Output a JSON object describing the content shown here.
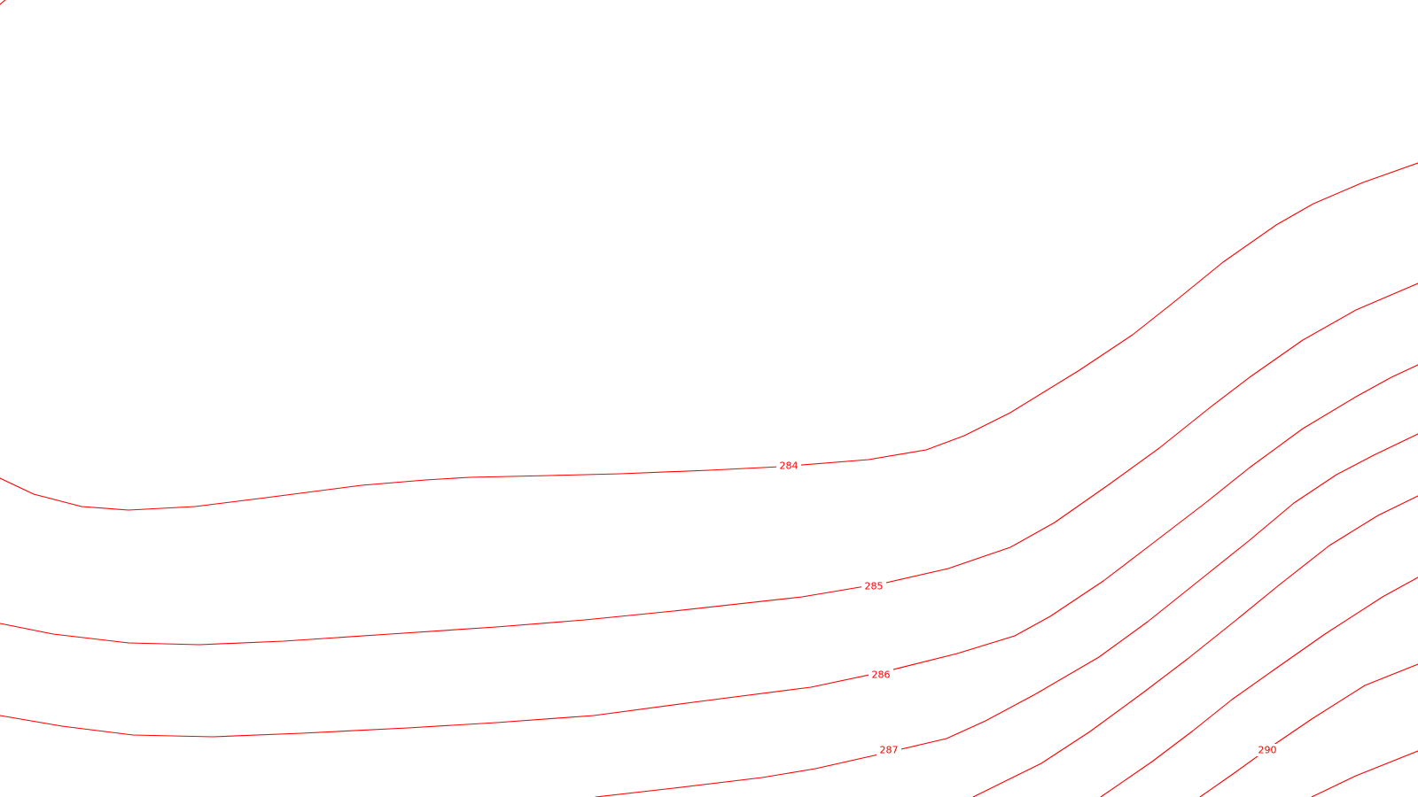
{
  "map": {
    "type": "contour-map",
    "line_color": "#ff0000",
    "background_color": "#ffffff",
    "contours": [
      {
        "elevation": "283",
        "labeled": false
      },
      {
        "elevation": "284",
        "labeled": true
      },
      {
        "elevation": "285",
        "labeled": true
      },
      {
        "elevation": "286",
        "labeled": true
      },
      {
        "elevation": "287",
        "labeled": true
      },
      {
        "elevation": "288",
        "labeled": false
      },
      {
        "elevation": "289",
        "labeled": false
      },
      {
        "elevation": "290",
        "labeled": true
      },
      {
        "elevation": "291",
        "labeled": false
      }
    ],
    "labels": [
      {
        "text": "284"
      },
      {
        "text": "285"
      },
      {
        "text": "286"
      },
      {
        "text": "287"
      },
      {
        "text": "290"
      }
    ]
  }
}
